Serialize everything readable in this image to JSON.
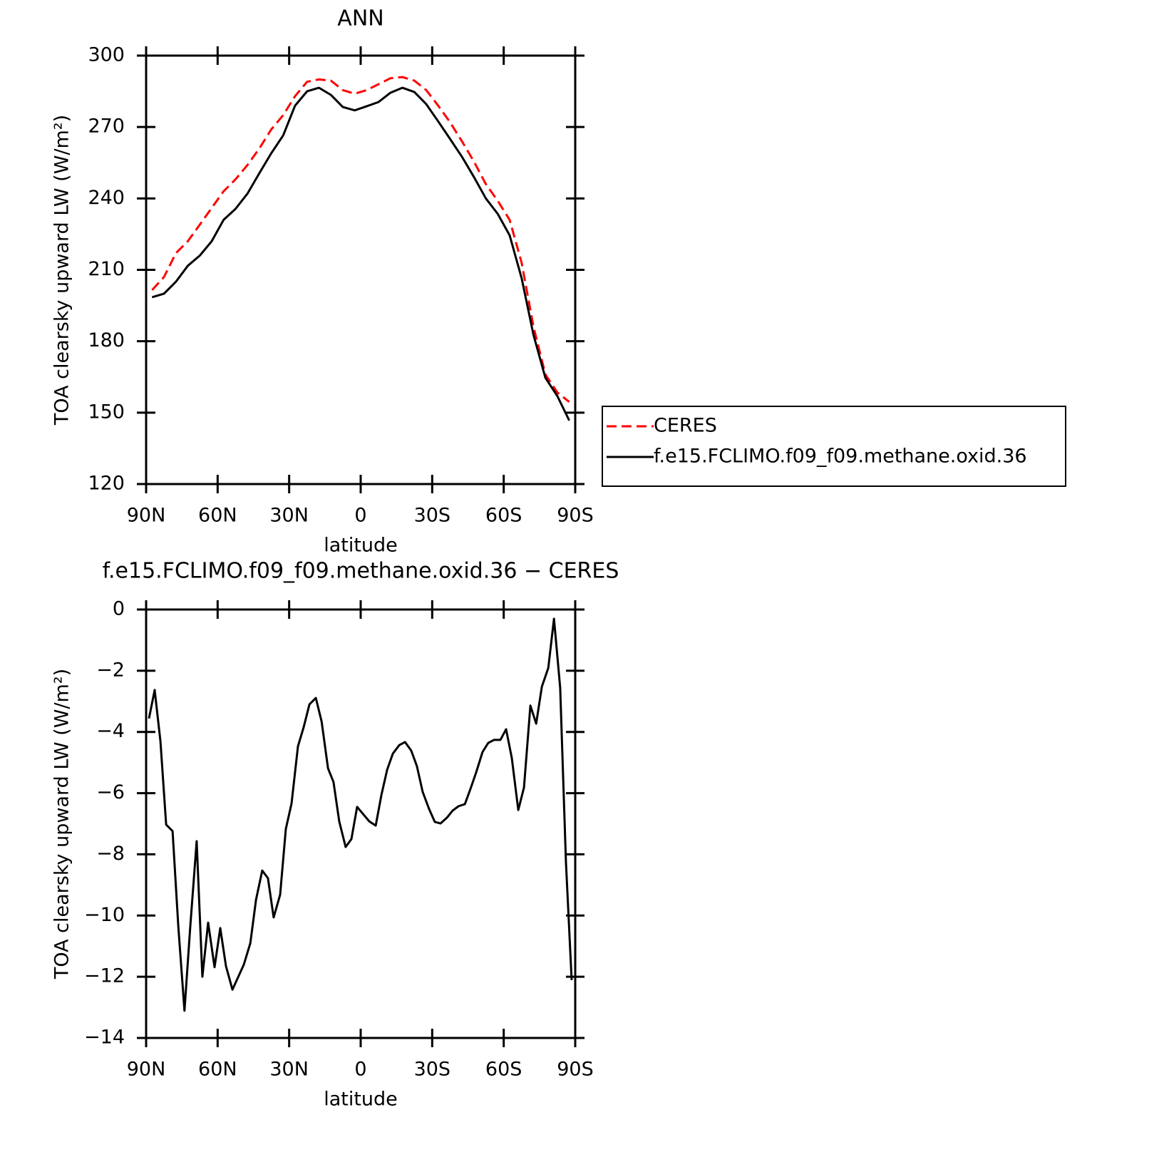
{
  "chart_data": [
    {
      "type": "line",
      "title": "ANN",
      "xlabel": "latitude",
      "ylabel": "TOA clearsky upward LW (W/m²)",
      "x": [
        87.5,
        82.5,
        77.5,
        72.5,
        67.5,
        62.5,
        57.5,
        52.5,
        47.5,
        42.5,
        37.5,
        32.5,
        27.5,
        22.5,
        17.5,
        12.5,
        7.5,
        2.5,
        -2.5,
        -7.5,
        -12.5,
        -17.5,
        -22.5,
        -27.5,
        -32.5,
        -37.5,
        -42.5,
        -47.5,
        -52.5,
        -57.5,
        -62.5,
        -67.5,
        -72.5,
        -77.5,
        -82.5,
        -87.5
      ],
      "series": [
        {
          "name": "CERES",
          "color": "#ff0000",
          "dashed": true,
          "values": [
            201.5,
            207,
            217,
            222,
            229,
            236,
            243,
            248,
            254,
            261,
            269,
            275,
            283,
            289,
            290,
            289.5,
            285.5,
            284,
            285.5,
            288,
            290.5,
            291,
            289.5,
            285.5,
            279,
            272,
            264,
            255.5,
            246,
            239,
            231,
            213,
            186,
            166,
            158.5,
            154.5
          ]
        },
        {
          "name": "f.e15.FCLIMO.f09_f09.methane.oxid.36",
          "color": "#000000",
          "dashed": false,
          "values": [
            198.5,
            200,
            205,
            211.7,
            216,
            222,
            231,
            235.6,
            242,
            250.6,
            259,
            266.5,
            279,
            285,
            286.5,
            283.5,
            278.4,
            277,
            278.7,
            280.5,
            284.4,
            286.5,
            284.7,
            279.6,
            272.4,
            265,
            257.5,
            249,
            240,
            233.5,
            224.5,
            206.5,
            182.6,
            164.6,
            157,
            146.7
          ]
        }
      ],
      "xlim": [
        90,
        -90
      ],
      "xticks": [
        {
          "value": 90,
          "label": "90N"
        },
        {
          "value": 60,
          "label": "60N"
        },
        {
          "value": 30,
          "label": "30N"
        },
        0,
        {
          "value": -30,
          "label": "30S"
        },
        {
          "value": -60,
          "label": "60S"
        },
        {
          "value": -90,
          "label": "90S"
        }
      ],
      "ylim": [
        120,
        300
      ],
      "yticks": [
        120,
        150,
        180,
        210,
        240,
        270,
        300
      ],
      "legend": "right"
    },
    {
      "type": "line",
      "title": "f.e15.FCLIMO.f09_f09.methane.oxid.36 − CERES",
      "xlabel": "latitude",
      "ylabel": "TOA clearsky upward LW (W/m²)",
      "x": [
        88.8,
        86.4,
        84.0,
        81.6,
        78.9,
        76.5,
        73.9,
        71.5,
        68.8,
        66.4,
        64.0,
        61.3,
        58.9,
        56.5,
        53.8,
        49.0,
        46.3,
        43.9,
        41.3,
        38.9,
        36.5,
        33.8,
        31.4,
        29.0,
        26.3,
        23.9,
        21.5,
        18.8,
        16.4,
        13.7,
        11.4,
        9.0,
        6.3,
        3.9,
        1.5,
        -3.6,
        -6.3,
        -8.7,
        -11.1,
        -13.5,
        -16.2,
        -18.6,
        -21.2,
        -23.6,
        -26.0,
        -28.7,
        -31.1,
        -33.5,
        -36.2,
        -38.6,
        -41.0,
        -43.7,
        -46.1,
        -48.5,
        -51.1,
        -53.5,
        -55.9,
        -58.6,
        -61.0,
        -63.4,
        -66.1,
        -68.5,
        -71.2,
        -73.6,
        -76.0,
        -78.7,
        -81.1,
        -83.7,
        -86.1,
        -88.5
      ],
      "values": [
        -3.56,
        -2.63,
        -4.31,
        -7.03,
        -7.24,
        -10.37,
        -13.11,
        -10.37,
        -7.57,
        -12.0,
        -10.23,
        -11.69,
        -10.41,
        -11.65,
        -12.42,
        -11.6,
        -10.9,
        -9.48,
        -8.53,
        -8.78,
        -10.06,
        -9.32,
        -7.17,
        -6.34,
        -4.47,
        -3.84,
        -3.1,
        -2.89,
        -3.66,
        -5.19,
        -5.64,
        -6.92,
        -7.76,
        -7.5,
        -6.45,
        -6.92,
        -7.06,
        -6.06,
        -5.24,
        -4.71,
        -4.43,
        -4.33,
        -4.61,
        -5.12,
        -5.96,
        -6.52,
        -6.94,
        -6.99,
        -6.8,
        -6.57,
        -6.43,
        -6.36,
        -5.85,
        -5.31,
        -4.66,
        -4.36,
        -4.26,
        -4.26,
        -3.91,
        -4.85,
        -6.55,
        -5.82,
        -3.14,
        -3.73,
        -2.52,
        -1.91,
        -0.3,
        -2.56,
        -8.27,
        -12.11
      ],
      "color": "#000000",
      "xlim": [
        90,
        -90
      ],
      "xticks": [
        {
          "value": 90,
          "label": "90N"
        },
        {
          "value": 60,
          "label": "60N"
        },
        {
          "value": 30,
          "label": "30N"
        },
        0,
        {
          "value": -30,
          "label": "30S"
        },
        {
          "value": -60,
          "label": "60S"
        },
        {
          "value": -90,
          "label": "90S"
        }
      ],
      "ylim": [
        -14,
        0
      ],
      "yticks": [
        {
          "value": -14,
          "label": "−14"
        },
        {
          "value": -12,
          "label": "−12"
        },
        {
          "value": -10,
          "label": "−10"
        },
        {
          "value": -8,
          "label": "−8"
        },
        {
          "value": -6,
          "label": "−6"
        },
        {
          "value": -4,
          "label": "−4"
        },
        {
          "value": -2,
          "label": "−2"
        },
        0
      ]
    }
  ]
}
